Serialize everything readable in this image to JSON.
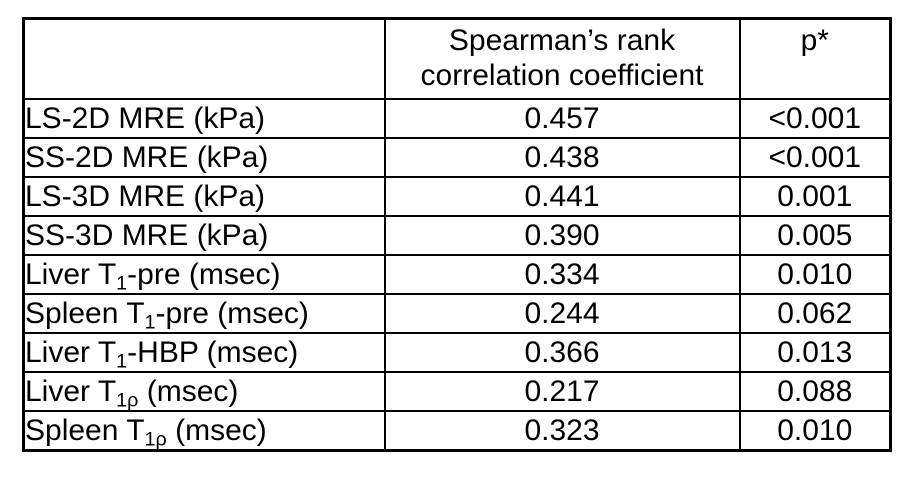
{
  "page": {
    "background": "#ffffff",
    "text_color": "#000000",
    "border_color": "#000000"
  },
  "table": {
    "header": {
      "empty": "",
      "spearman_line1": "Spearman’s rank",
      "spearman_line2": "correlation coefficient",
      "p": "p*"
    },
    "rows": [
      {
        "label": {
          "pre": "LS-2D MRE (kPa)",
          "sub": "",
          "post": ""
        },
        "coef": "0.457",
        "p": "<0.001",
        "p_bold": true
      },
      {
        "label": {
          "pre": "SS-2D MRE (kPa)",
          "sub": "",
          "post": ""
        },
        "coef": "0.438",
        "p": "<0.001",
        "p_bold": true
      },
      {
        "label": {
          "pre": "LS-3D MRE (kPa)",
          "sub": "",
          "post": ""
        },
        "coef": "0.441",
        "p": "0.001",
        "p_bold": true
      },
      {
        "label": {
          "pre": "SS-3D MRE (kPa)",
          "sub": "",
          "post": ""
        },
        "coef": "0.390",
        "p": "0.005",
        "p_bold": true
      },
      {
        "label": {
          "pre": "Liver T",
          "sub": "1",
          "post": "-pre (msec)"
        },
        "coef": "0.334",
        "p": "0.010",
        "p_bold": true
      },
      {
        "label": {
          "pre": "Spleen T",
          "sub": "1",
          "post": "-pre (msec)"
        },
        "coef": "0.244",
        "p": "0.062",
        "p_bold": false
      },
      {
        "label": {
          "pre": "Liver T",
          "sub": "1",
          "post": "-HBP (msec)"
        },
        "coef": "0.366",
        "p": "0.013",
        "p_bold": true
      },
      {
        "label": {
          "pre": "Liver T",
          "sub": "1ρ",
          "post": " (msec)"
        },
        "coef": "0.217",
        "p": "0.088",
        "p_bold": false
      },
      {
        "label": {
          "pre": "Spleen T",
          "sub": "1ρ",
          "post": " (msec)"
        },
        "coef": "0.323",
        "p": "0.010",
        "p_bold": true
      }
    ]
  },
  "chart_data": {
    "type": "table",
    "columns": [
      "",
      "Spearman's rank correlation coefficient",
      "p*"
    ],
    "rows": [
      [
        "LS-2D MRE (kPa)",
        "0.457",
        "<0.001"
      ],
      [
        "SS-2D MRE (kPa)",
        "0.438",
        "<0.001"
      ],
      [
        "LS-3D MRE (kPa)",
        "0.441",
        "0.001"
      ],
      [
        "SS-3D MRE (kPa)",
        "0.390",
        "0.005"
      ],
      [
        "Liver T1-pre (msec)",
        "0.334",
        "0.010"
      ],
      [
        "Spleen T1-pre (msec)",
        "0.244",
        "0.062"
      ],
      [
        "Liver T1-HBP (msec)",
        "0.366",
        "0.013"
      ],
      [
        "Liver T1ρ (msec)",
        "0.217",
        "0.088"
      ],
      [
        "Spleen T1ρ (msec)",
        "0.323",
        "0.010"
      ]
    ],
    "bold_p_rows": [
      0,
      1,
      2,
      3,
      4,
      6,
      8
    ]
  }
}
